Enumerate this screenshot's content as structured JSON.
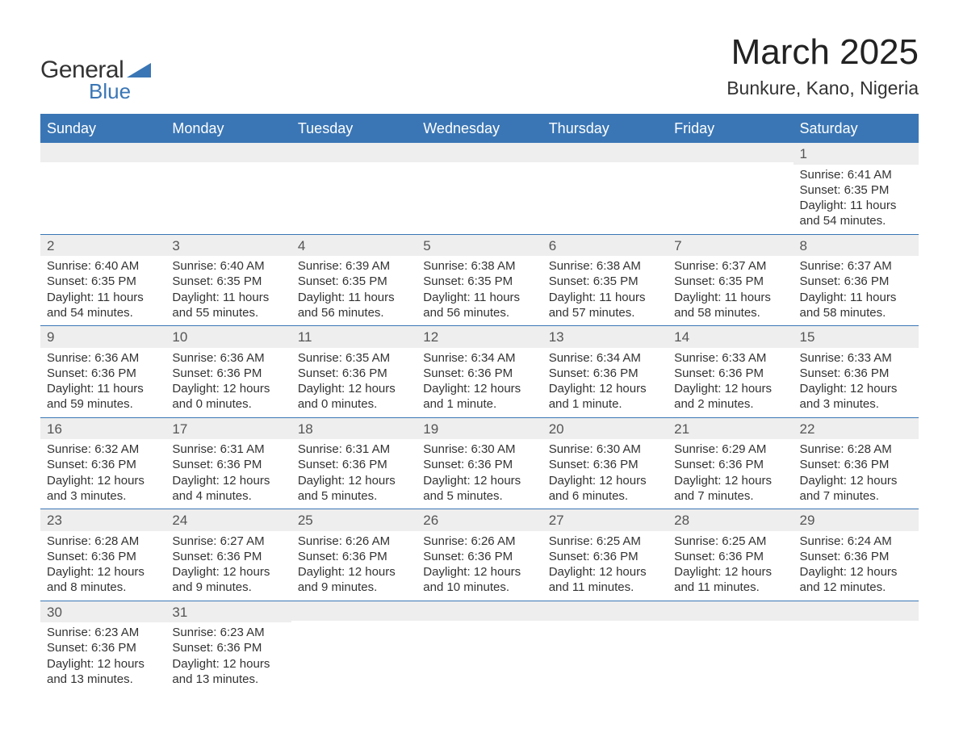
{
  "logo": {
    "text_general": "General",
    "text_blue": "Blue",
    "shape_color": "#3a76b5"
  },
  "title": "March 2025",
  "subtitle": "Bunkure, Kano, Nigeria",
  "colors": {
    "header_bg": "#3a76b5",
    "header_text": "#ffffff",
    "row_separator": "#3a76b5",
    "day_num_bg": "#eeeeee",
    "text": "#333333",
    "background": "#ffffff"
  },
  "typography": {
    "title_fontsize": 44,
    "subtitle_fontsize": 23,
    "weekday_fontsize": 18,
    "daynum_fontsize": 17,
    "body_fontsize": 15,
    "font_family": "Arial"
  },
  "calendar": {
    "weekdays": [
      "Sunday",
      "Monday",
      "Tuesday",
      "Wednesday",
      "Thursday",
      "Friday",
      "Saturday"
    ],
    "weeks": [
      [
        null,
        null,
        null,
        null,
        null,
        null,
        {
          "day": "1",
          "sunrise": "Sunrise: 6:41 AM",
          "sunset": "Sunset: 6:35 PM",
          "daylight1": "Daylight: 11 hours",
          "daylight2": "and 54 minutes."
        }
      ],
      [
        {
          "day": "2",
          "sunrise": "Sunrise: 6:40 AM",
          "sunset": "Sunset: 6:35 PM",
          "daylight1": "Daylight: 11 hours",
          "daylight2": "and 54 minutes."
        },
        {
          "day": "3",
          "sunrise": "Sunrise: 6:40 AM",
          "sunset": "Sunset: 6:35 PM",
          "daylight1": "Daylight: 11 hours",
          "daylight2": "and 55 minutes."
        },
        {
          "day": "4",
          "sunrise": "Sunrise: 6:39 AM",
          "sunset": "Sunset: 6:35 PM",
          "daylight1": "Daylight: 11 hours",
          "daylight2": "and 56 minutes."
        },
        {
          "day": "5",
          "sunrise": "Sunrise: 6:38 AM",
          "sunset": "Sunset: 6:35 PM",
          "daylight1": "Daylight: 11 hours",
          "daylight2": "and 56 minutes."
        },
        {
          "day": "6",
          "sunrise": "Sunrise: 6:38 AM",
          "sunset": "Sunset: 6:35 PM",
          "daylight1": "Daylight: 11 hours",
          "daylight2": "and 57 minutes."
        },
        {
          "day": "7",
          "sunrise": "Sunrise: 6:37 AM",
          "sunset": "Sunset: 6:35 PM",
          "daylight1": "Daylight: 11 hours",
          "daylight2": "and 58 minutes."
        },
        {
          "day": "8",
          "sunrise": "Sunrise: 6:37 AM",
          "sunset": "Sunset: 6:36 PM",
          "daylight1": "Daylight: 11 hours",
          "daylight2": "and 58 minutes."
        }
      ],
      [
        {
          "day": "9",
          "sunrise": "Sunrise: 6:36 AM",
          "sunset": "Sunset: 6:36 PM",
          "daylight1": "Daylight: 11 hours",
          "daylight2": "and 59 minutes."
        },
        {
          "day": "10",
          "sunrise": "Sunrise: 6:36 AM",
          "sunset": "Sunset: 6:36 PM",
          "daylight1": "Daylight: 12 hours",
          "daylight2": "and 0 minutes."
        },
        {
          "day": "11",
          "sunrise": "Sunrise: 6:35 AM",
          "sunset": "Sunset: 6:36 PM",
          "daylight1": "Daylight: 12 hours",
          "daylight2": "and 0 minutes."
        },
        {
          "day": "12",
          "sunrise": "Sunrise: 6:34 AM",
          "sunset": "Sunset: 6:36 PM",
          "daylight1": "Daylight: 12 hours",
          "daylight2": "and 1 minute."
        },
        {
          "day": "13",
          "sunrise": "Sunrise: 6:34 AM",
          "sunset": "Sunset: 6:36 PM",
          "daylight1": "Daylight: 12 hours",
          "daylight2": "and 1 minute."
        },
        {
          "day": "14",
          "sunrise": "Sunrise: 6:33 AM",
          "sunset": "Sunset: 6:36 PM",
          "daylight1": "Daylight: 12 hours",
          "daylight2": "and 2 minutes."
        },
        {
          "day": "15",
          "sunrise": "Sunrise: 6:33 AM",
          "sunset": "Sunset: 6:36 PM",
          "daylight1": "Daylight: 12 hours",
          "daylight2": "and 3 minutes."
        }
      ],
      [
        {
          "day": "16",
          "sunrise": "Sunrise: 6:32 AM",
          "sunset": "Sunset: 6:36 PM",
          "daylight1": "Daylight: 12 hours",
          "daylight2": "and 3 minutes."
        },
        {
          "day": "17",
          "sunrise": "Sunrise: 6:31 AM",
          "sunset": "Sunset: 6:36 PM",
          "daylight1": "Daylight: 12 hours",
          "daylight2": "and 4 minutes."
        },
        {
          "day": "18",
          "sunrise": "Sunrise: 6:31 AM",
          "sunset": "Sunset: 6:36 PM",
          "daylight1": "Daylight: 12 hours",
          "daylight2": "and 5 minutes."
        },
        {
          "day": "19",
          "sunrise": "Sunrise: 6:30 AM",
          "sunset": "Sunset: 6:36 PM",
          "daylight1": "Daylight: 12 hours",
          "daylight2": "and 5 minutes."
        },
        {
          "day": "20",
          "sunrise": "Sunrise: 6:30 AM",
          "sunset": "Sunset: 6:36 PM",
          "daylight1": "Daylight: 12 hours",
          "daylight2": "and 6 minutes."
        },
        {
          "day": "21",
          "sunrise": "Sunrise: 6:29 AM",
          "sunset": "Sunset: 6:36 PM",
          "daylight1": "Daylight: 12 hours",
          "daylight2": "and 7 minutes."
        },
        {
          "day": "22",
          "sunrise": "Sunrise: 6:28 AM",
          "sunset": "Sunset: 6:36 PM",
          "daylight1": "Daylight: 12 hours",
          "daylight2": "and 7 minutes."
        }
      ],
      [
        {
          "day": "23",
          "sunrise": "Sunrise: 6:28 AM",
          "sunset": "Sunset: 6:36 PM",
          "daylight1": "Daylight: 12 hours",
          "daylight2": "and 8 minutes."
        },
        {
          "day": "24",
          "sunrise": "Sunrise: 6:27 AM",
          "sunset": "Sunset: 6:36 PM",
          "daylight1": "Daylight: 12 hours",
          "daylight2": "and 9 minutes."
        },
        {
          "day": "25",
          "sunrise": "Sunrise: 6:26 AM",
          "sunset": "Sunset: 6:36 PM",
          "daylight1": "Daylight: 12 hours",
          "daylight2": "and 9 minutes."
        },
        {
          "day": "26",
          "sunrise": "Sunrise: 6:26 AM",
          "sunset": "Sunset: 6:36 PM",
          "daylight1": "Daylight: 12 hours",
          "daylight2": "and 10 minutes."
        },
        {
          "day": "27",
          "sunrise": "Sunrise: 6:25 AM",
          "sunset": "Sunset: 6:36 PM",
          "daylight1": "Daylight: 12 hours",
          "daylight2": "and 11 minutes."
        },
        {
          "day": "28",
          "sunrise": "Sunrise: 6:25 AM",
          "sunset": "Sunset: 6:36 PM",
          "daylight1": "Daylight: 12 hours",
          "daylight2": "and 11 minutes."
        },
        {
          "day": "29",
          "sunrise": "Sunrise: 6:24 AM",
          "sunset": "Sunset: 6:36 PM",
          "daylight1": "Daylight: 12 hours",
          "daylight2": "and 12 minutes."
        }
      ],
      [
        {
          "day": "30",
          "sunrise": "Sunrise: 6:23 AM",
          "sunset": "Sunset: 6:36 PM",
          "daylight1": "Daylight: 12 hours",
          "daylight2": "and 13 minutes."
        },
        {
          "day": "31",
          "sunrise": "Sunrise: 6:23 AM",
          "sunset": "Sunset: 6:36 PM",
          "daylight1": "Daylight: 12 hours",
          "daylight2": "and 13 minutes."
        },
        null,
        null,
        null,
        null,
        null
      ]
    ]
  }
}
